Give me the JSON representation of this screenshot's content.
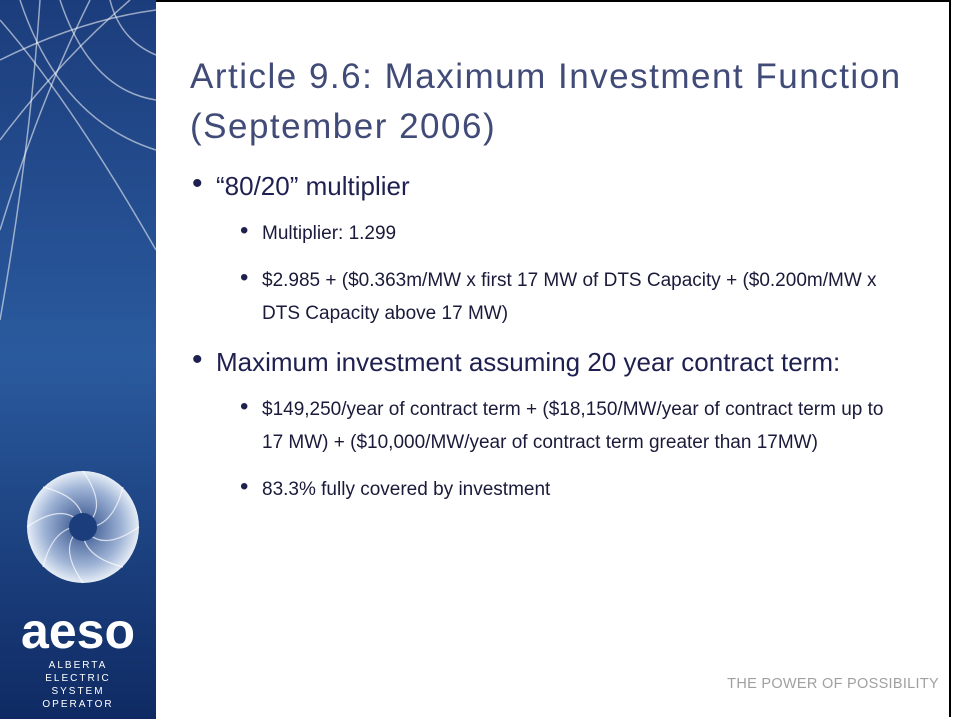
{
  "sidebar": {
    "logo_text": "aeso",
    "org_lines": [
      "ALBERTA",
      "ELECTRIC",
      "SYSTEM",
      "OPERATOR"
    ]
  },
  "title": "Article 9.6: Maximum Investment Function (September 2006)",
  "bullets": [
    {
      "text": "“80/20” multiplier",
      "sub": [
        "Multiplier: 1.299",
        "$2.985 + ($0.363m/MW x first 17 MW of DTS Capacity + ($0.200m/MW x DTS Capacity above 17 MW)"
      ]
    },
    {
      "text": "Maximum investment assuming 20 year contract term:",
      "sub": [
        "$149,250/year of contract term + ($18,150/MW/year of contract term up to 17 MW) + ($10,000/MW/year of contract term greater than 17MW)",
        "83.3% fully covered by investment"
      ]
    }
  ],
  "footer": "THE POWER OF POSSIBILITY"
}
